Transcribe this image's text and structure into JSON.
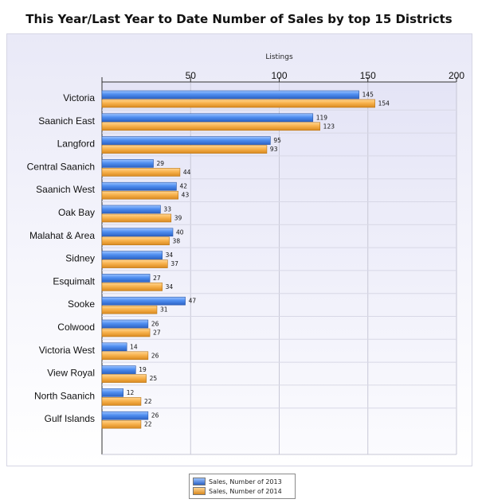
{
  "chart_data": {
    "type": "bar",
    "orientation": "horizontal",
    "title": "This Year/Last Year to Date Number of Sales by top 15 Districts",
    "xlabel": "Listings",
    "ylabel": "",
    "xlim": [
      0,
      200
    ],
    "ticks": [
      0,
      50,
      100,
      150,
      200
    ],
    "tick_labels": [
      "50",
      "100",
      "150",
      "200"
    ],
    "grid": true,
    "legend_position": "bottom",
    "categories": [
      "Victoria",
      "Saanich East",
      "Langford",
      "Central Saanich",
      "Saanich West",
      "Oak Bay",
      "Malahat & Area",
      "Sidney",
      "Esquimalt",
      "Sooke",
      "Colwood",
      "Victoria West",
      "View Royal",
      "North Saanich",
      "Gulf Islands"
    ],
    "series": [
      {
        "name": "Sales, Number of 2013",
        "color": "#3f7fe0",
        "values": [
          145,
          119,
          95,
          29,
          42,
          33,
          40,
          34,
          27,
          47,
          26,
          14,
          19,
          12,
          26
        ]
      },
      {
        "name": "Sales, Number of 2014",
        "color": "#f5a93c",
        "values": [
          154,
          123,
          93,
          44,
          43,
          39,
          38,
          37,
          34,
          31,
          27,
          26,
          25,
          22,
          22
        ]
      }
    ]
  }
}
